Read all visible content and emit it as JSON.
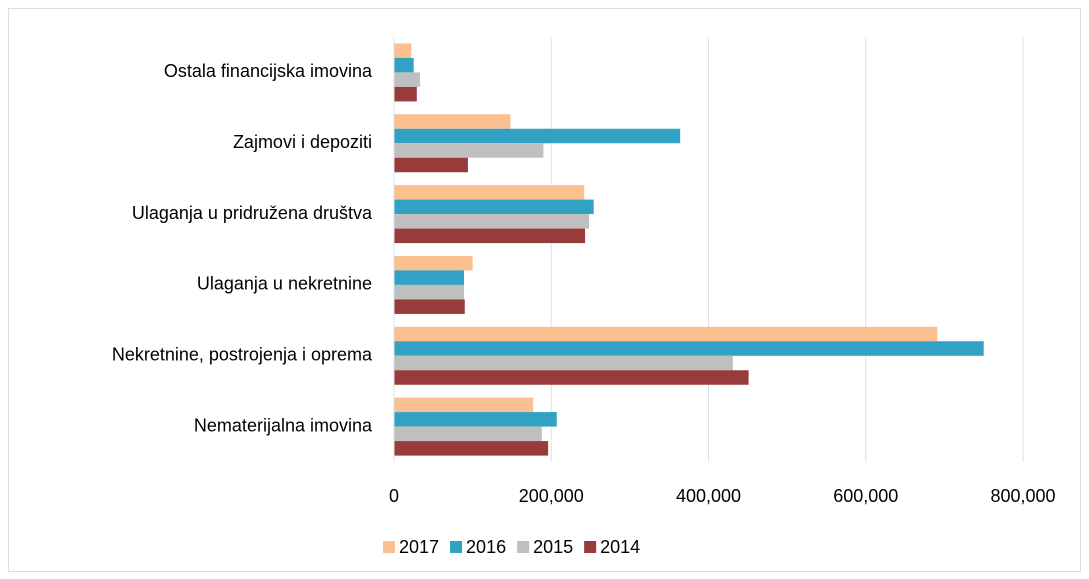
{
  "chart_data": {
    "type": "hbar",
    "categories": [
      "Ostala financijska imovina",
      "Zajmovi i depoziti",
      "Ulaganja u pridružena društva",
      "Ulaganja u nekretnine",
      "Nekretnine, postrojenja i oprema",
      "Nematerijalna imovina"
    ],
    "series": [
      {
        "name": "2017",
        "color": "#fac090",
        "values": [
          22000,
          148000,
          242000,
          100000,
          691000,
          177000
        ]
      },
      {
        "name": "2016",
        "color": "#31a2c4",
        "values": [
          25000,
          364000,
          254000,
          89000,
          750000,
          207000
        ]
      },
      {
        "name": "2015",
        "color": "#bfbfbf",
        "values": [
          33000,
          190000,
          248000,
          89000,
          431000,
          188000
        ]
      },
      {
        "name": "2014",
        "color": "#983b3a",
        "values": [
          29000,
          94000,
          243000,
          90000,
          451000,
          196000
        ]
      }
    ],
    "xlim": [
      0,
      800000
    ],
    "xticks": [
      0,
      {
        "value": 200000,
        "label": "200,000"
      },
      {
        "value": 400000,
        "label": "400,000"
      },
      {
        "value": 600000,
        "label": "600,000"
      },
      {
        "value": 800000,
        "label": "800,000"
      }
    ],
    "grid": true,
    "legend": "bottom"
  }
}
